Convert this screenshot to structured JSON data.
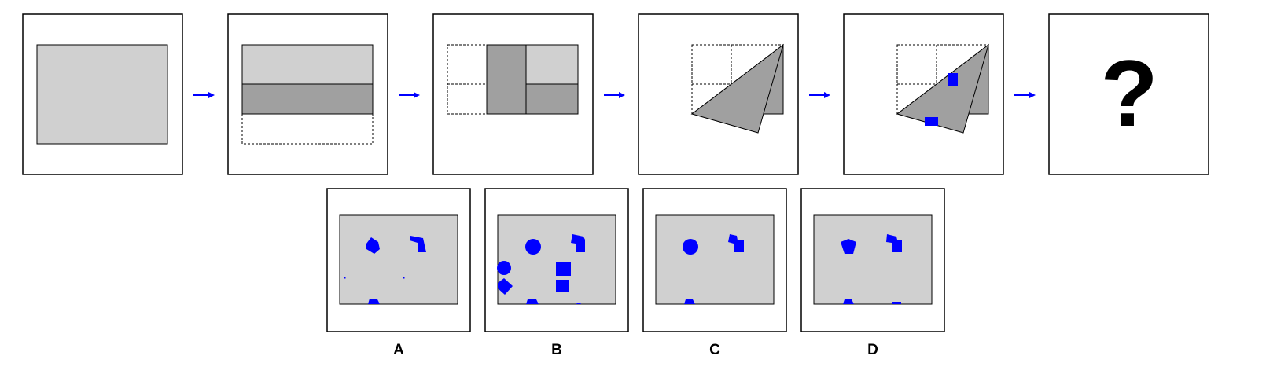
{
  "colors": {
    "paper": "#d0d0d0",
    "fold": "#a0a0a0",
    "hole": "#0000ff",
    "arrow": "#0000ff",
    "frame": "#000000"
  },
  "question_mark": "?",
  "options": [
    {
      "label": "A"
    },
    {
      "label": "B"
    },
    {
      "label": "C"
    },
    {
      "label": "D"
    }
  ]
}
